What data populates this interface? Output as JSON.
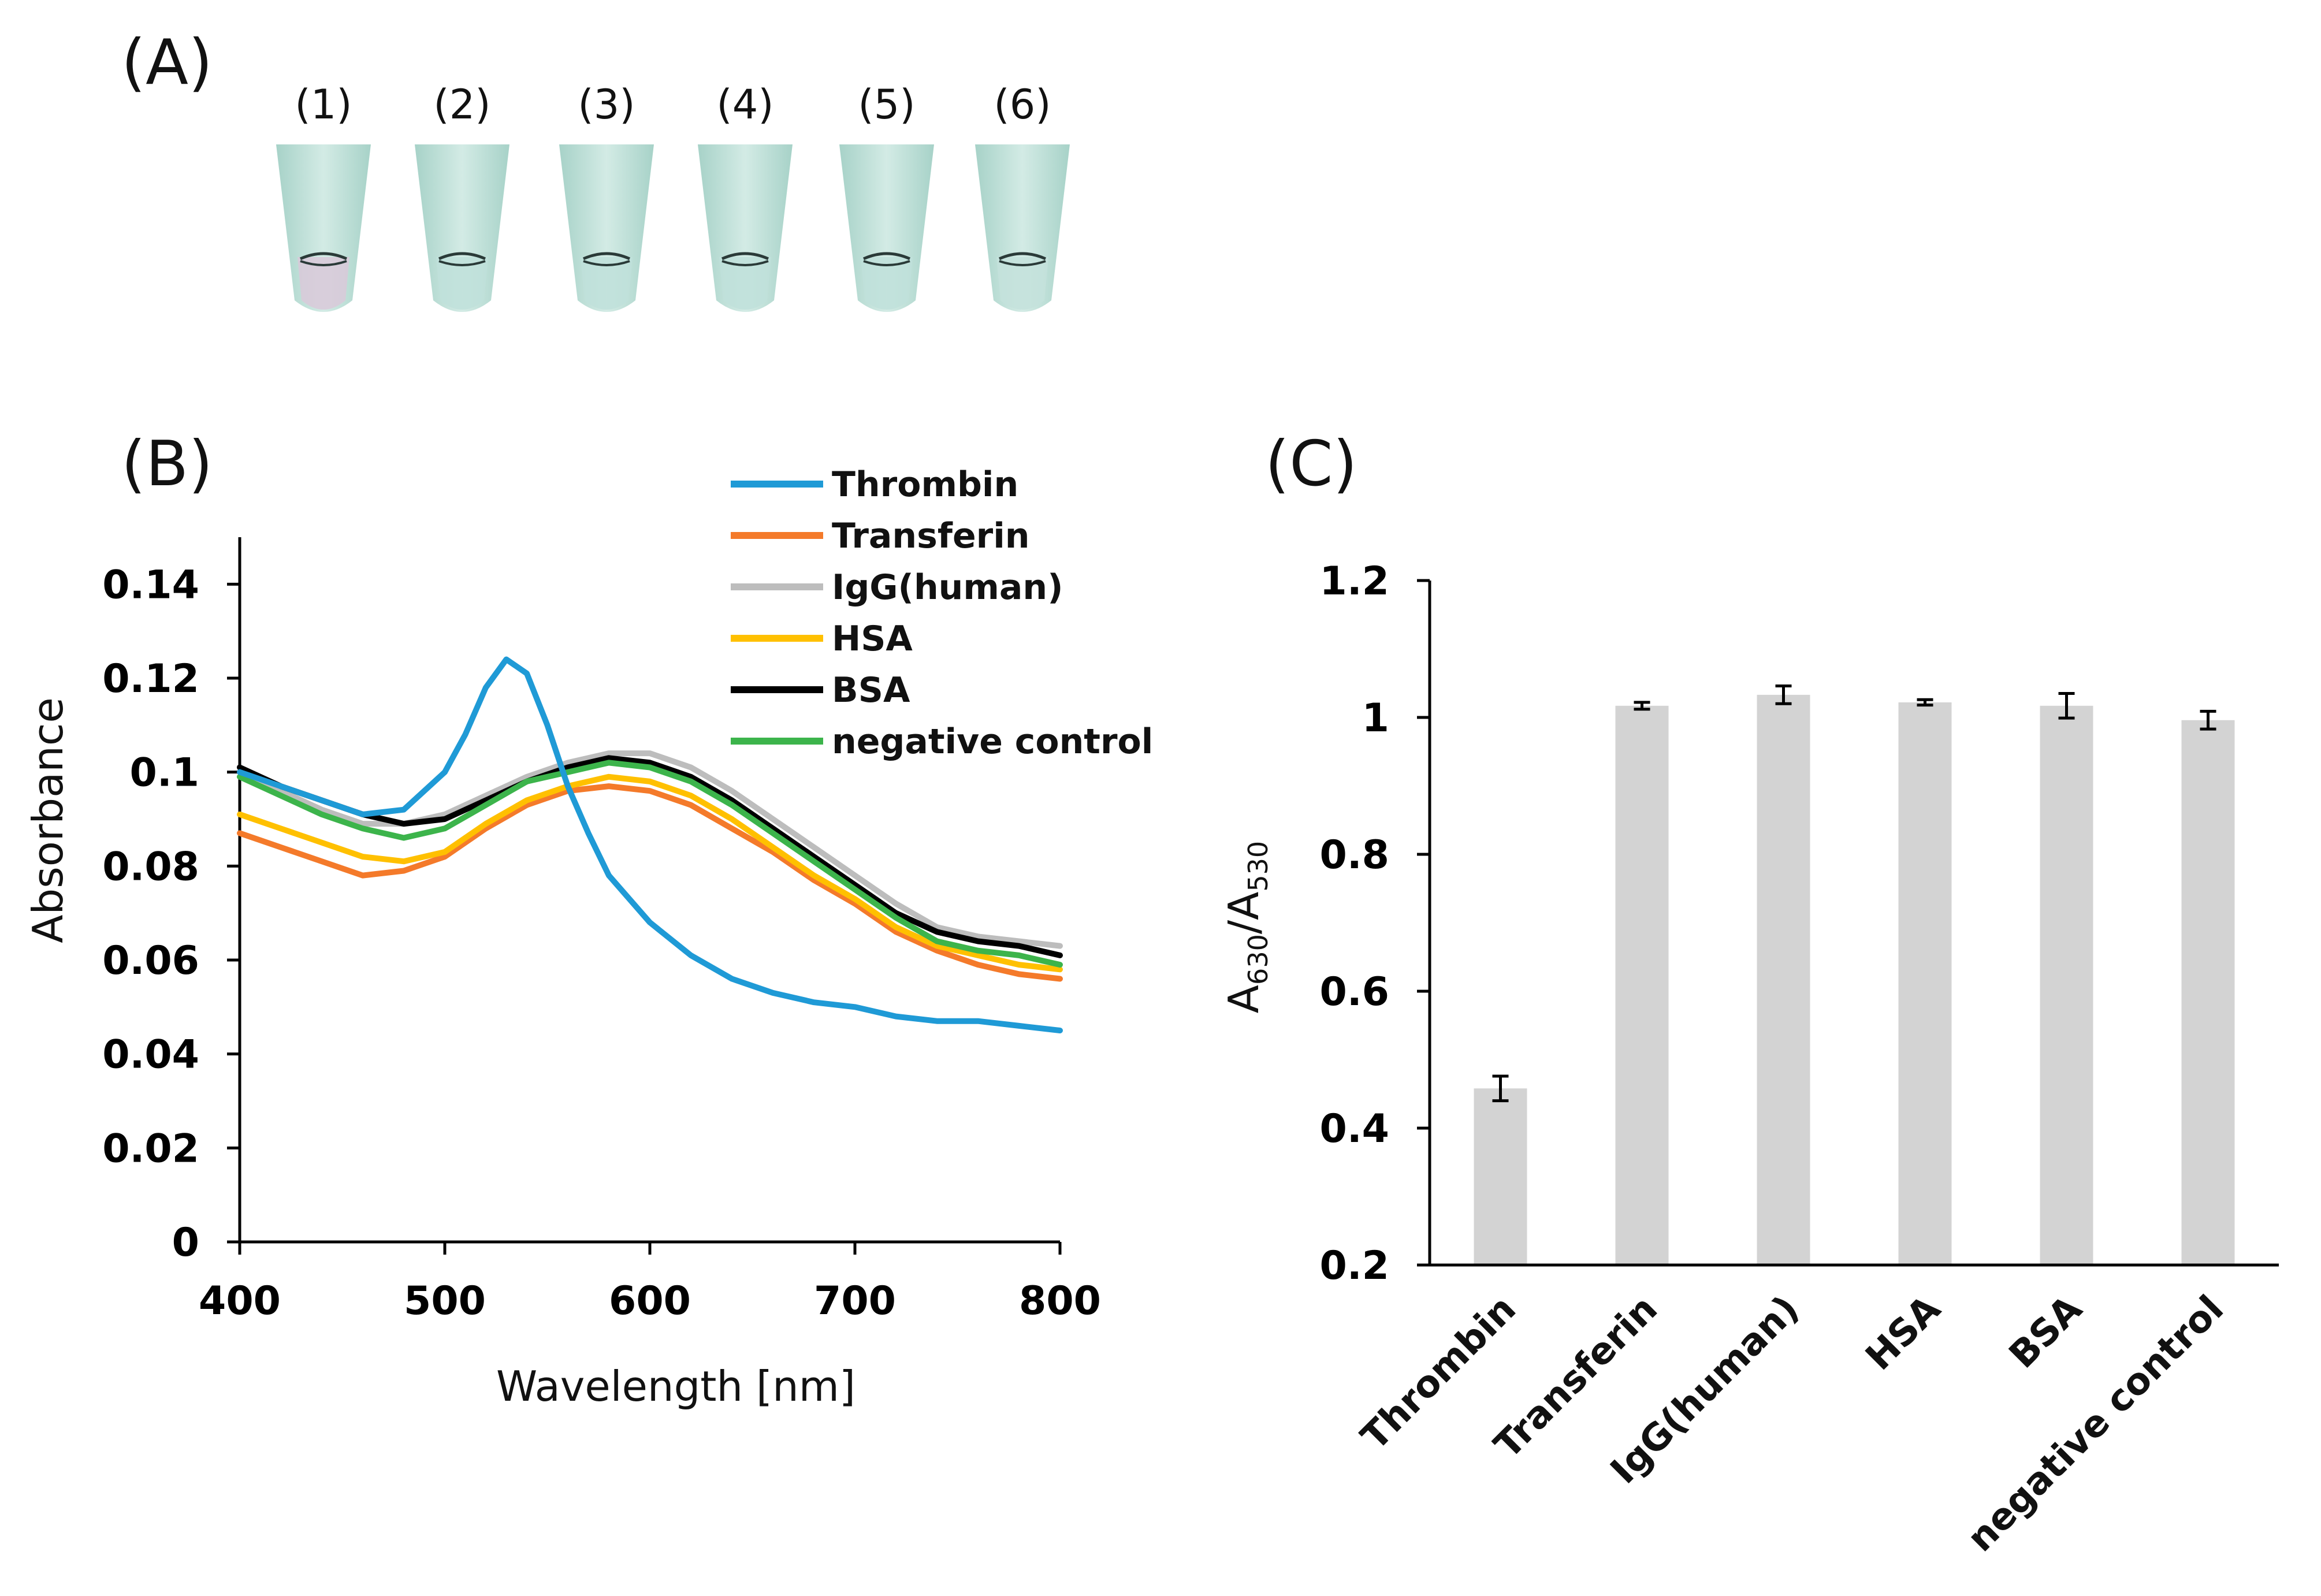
{
  "panels": {
    "a": "(A)",
    "b": "(B)",
    "c": "(C)"
  },
  "panel_a": {
    "tube_labels": [
      "(1)",
      "(2)",
      "(3)",
      "(4)",
      "(5)",
      "(6)"
    ],
    "tube_tip_colors": [
      "#d9c9d9",
      "#bfe0da",
      "#bfe0da",
      "#bfe0da",
      "#bfe0da",
      "#c4e2dc"
    ]
  },
  "chart_data": [
    {
      "type": "line",
      "panel": "(B)",
      "xlabel": "Wavelength [nm]",
      "ylabel": "Absorbance",
      "xlim": [
        400,
        800
      ],
      "ylim": [
        0,
        0.15
      ],
      "xticks": [
        400,
        500,
        600,
        700,
        800
      ],
      "yticks": [
        0,
        0.02,
        0.04,
        0.06,
        0.08,
        0.1,
        0.12,
        0.14
      ],
      "ytick_labels": [
        "0",
        "0.02",
        "0.04",
        "0.06",
        "0.08",
        "0.1",
        "0.12",
        "0.14"
      ],
      "legend_position": "top-right",
      "series": [
        {
          "name": "Thrombin",
          "color": "#1f9ad6",
          "x": [
            400,
            420,
            440,
            460,
            480,
            500,
            510,
            520,
            530,
            540,
            550,
            560,
            570,
            580,
            600,
            620,
            640,
            660,
            680,
            700,
            720,
            740,
            760,
            780,
            800
          ],
          "y": [
            0.1,
            0.097,
            0.094,
            0.091,
            0.092,
            0.1,
            0.108,
            0.118,
            0.124,
            0.121,
            0.11,
            0.097,
            0.087,
            0.078,
            0.068,
            0.061,
            0.056,
            0.053,
            0.051,
            0.05,
            0.048,
            0.047,
            0.047,
            0.046,
            0.045
          ]
        },
        {
          "name": "Transferin",
          "color": "#f47a2a",
          "x": [
            400,
            420,
            440,
            460,
            480,
            500,
            520,
            540,
            560,
            580,
            600,
            620,
            640,
            660,
            680,
            700,
            720,
            740,
            760,
            780,
            800
          ],
          "y": [
            0.087,
            0.084,
            0.081,
            0.078,
            0.079,
            0.082,
            0.088,
            0.093,
            0.096,
            0.097,
            0.096,
            0.093,
            0.088,
            0.083,
            0.077,
            0.072,
            0.066,
            0.062,
            0.059,
            0.057,
            0.056
          ]
        },
        {
          "name": "IgG(human)",
          "color": "#bdbdbd",
          "x": [
            400,
            420,
            440,
            460,
            480,
            500,
            520,
            540,
            560,
            580,
            600,
            620,
            640,
            660,
            680,
            700,
            720,
            740,
            760,
            780,
            800
          ],
          "y": [
            0.099,
            0.096,
            0.092,
            0.089,
            0.089,
            0.091,
            0.095,
            0.099,
            0.102,
            0.104,
            0.104,
            0.101,
            0.096,
            0.09,
            0.084,
            0.078,
            0.072,
            0.067,
            0.065,
            0.064,
            0.063
          ]
        },
        {
          "name": "HSA",
          "color": "#ffc000",
          "x": [
            400,
            420,
            440,
            460,
            480,
            500,
            520,
            540,
            560,
            580,
            600,
            620,
            640,
            660,
            680,
            700,
            720,
            740,
            760,
            780,
            800
          ],
          "y": [
            0.091,
            0.088,
            0.085,
            0.082,
            0.081,
            0.083,
            0.089,
            0.094,
            0.097,
            0.099,
            0.098,
            0.095,
            0.09,
            0.084,
            0.078,
            0.073,
            0.067,
            0.063,
            0.061,
            0.059,
            0.058
          ]
        },
        {
          "name": "BSA",
          "color": "#000000",
          "x": [
            400,
            420,
            440,
            460,
            480,
            500,
            520,
            540,
            560,
            580,
            600,
            620,
            640,
            660,
            680,
            700,
            720,
            740,
            760,
            780,
            800
          ],
          "y": [
            0.101,
            0.097,
            0.094,
            0.091,
            0.089,
            0.09,
            0.094,
            0.098,
            0.101,
            0.103,
            0.102,
            0.099,
            0.094,
            0.088,
            0.082,
            0.076,
            0.07,
            0.066,
            0.064,
            0.063,
            0.061
          ]
        },
        {
          "name": "negative control",
          "color": "#3cb44b",
          "x": [
            400,
            420,
            440,
            460,
            480,
            500,
            520,
            540,
            560,
            580,
            600,
            620,
            640,
            660,
            680,
            700,
            720,
            740,
            760,
            780,
            800
          ],
          "y": [
            0.099,
            0.095,
            0.091,
            0.088,
            0.086,
            0.088,
            0.093,
            0.098,
            0.1,
            0.102,
            0.101,
            0.098,
            0.093,
            0.087,
            0.081,
            0.075,
            0.069,
            0.064,
            0.062,
            0.061,
            0.059
          ]
        }
      ]
    },
    {
      "type": "bar",
      "panel": "(C)",
      "ylabel_main": "A",
      "ylabel_sub1": "630",
      "ylabel_sep": "/A",
      "ylabel_sub2": "530",
      "ylim": [
        0.2,
        1.2
      ],
      "yticks": [
        0.2,
        0.4,
        0.6,
        0.8,
        1.0,
        1.2
      ],
      "ytick_labels": [
        "0.2",
        "0.4",
        "0.6",
        "0.8",
        "1",
        "1.2"
      ],
      "bar_color": "#d3d3d3",
      "categories": [
        "Thrombin",
        "Transferin",
        "IgG(human)",
        "HSA",
        "BSA",
        "negative control"
      ],
      "values": [
        0.458,
        1.017,
        1.033,
        1.022,
        1.017,
        0.996
      ],
      "errors": [
        0.018,
        0.005,
        0.013,
        0.004,
        0.018,
        0.013
      ]
    }
  ]
}
